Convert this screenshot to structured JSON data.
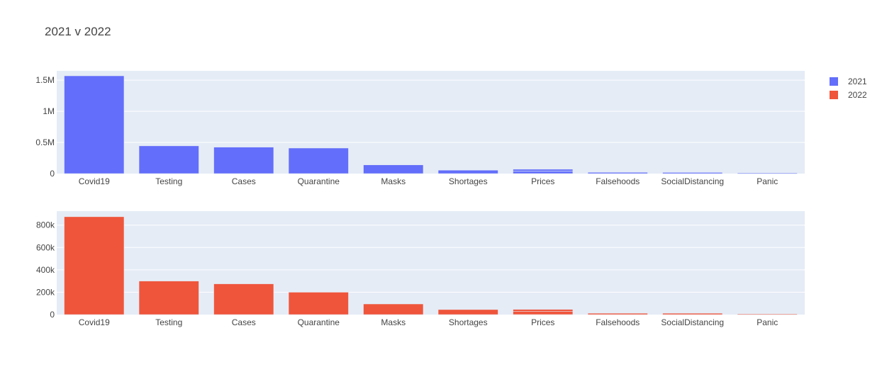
{
  "chart_data": {
    "title": "2021 v 2022",
    "type": "bar",
    "legend": {
      "placement": "top-right",
      "entries": [
        {
          "name": "2021",
          "color": "#636efa"
        },
        {
          "name": "2022",
          "color": "#ef553b"
        }
      ]
    },
    "categories": [
      "Covid19",
      "Testing",
      "Cases",
      "Quarantine",
      "Masks",
      "Shortages",
      "Prices",
      "Falsehoods",
      "SocialDistancing",
      "Panic"
    ],
    "plot_background": "#e5ecf6",
    "gridlines": true,
    "subplots": [
      {
        "series": [
          {
            "name": "2021",
            "color": "#636efa",
            "values": [
              1570000,
              445000,
              425000,
              410000,
              140000,
              55000,
              70000,
              20000,
              18000,
              8000
            ]
          }
        ],
        "ylim": [
          0,
          1650000
        ],
        "yticks": [
          0,
          500000,
          1000000,
          1500000
        ],
        "ytick_labels": [
          "0",
          "0.5M",
          "1M",
          "1.5M"
        ],
        "prices_stack": [
          40000,
          30000
        ]
      },
      {
        "series": [
          {
            "name": "2022",
            "color": "#ef553b",
            "values": [
              875000,
              300000,
              275000,
              200000,
              95000,
              45000,
              47000,
              12000,
              12000,
              5000
            ]
          }
        ],
        "ylim": [
          0,
          925000
        ],
        "yticks": [
          0,
          200000,
          400000,
          600000,
          800000
        ],
        "ytick_labels": [
          "0",
          "200k",
          "400k",
          "600k",
          "800k"
        ],
        "prices_stack": [
          30000,
          17000
        ]
      }
    ]
  }
}
